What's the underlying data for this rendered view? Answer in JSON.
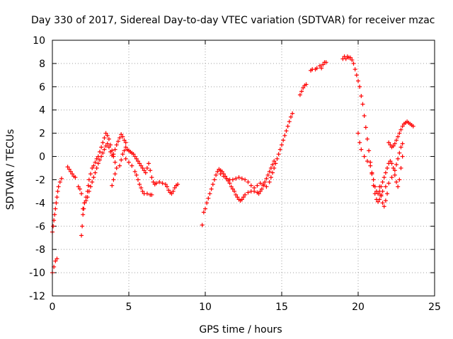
{
  "chart_data": {
    "type": "scatter",
    "title": "Day 330 of 2017, Sidereal Day-to-day VTEC variation (SDTVAR) for receiver mzac",
    "xlabel": "GPS time / hours",
    "ylabel": "SDTVAR / TECUs",
    "xlim": [
      0,
      25
    ],
    "ylim": [
      -12,
      10
    ],
    "x_ticks": [
      0,
      5,
      10,
      15,
      20,
      25
    ],
    "y_ticks": [
      -12,
      -10,
      -8,
      -6,
      -4,
      -2,
      0,
      2,
      4,
      6,
      8,
      10
    ],
    "x_tick_labels": [
      "0",
      "5",
      "10",
      "15",
      "20",
      "25"
    ],
    "y_tick_labels": [
      "-12",
      "-10",
      "-8",
      "-6",
      "-4",
      "-2",
      "0",
      "2",
      "4",
      "6",
      "8",
      "10"
    ],
    "grid": true,
    "marker": "plus",
    "color": "#ff0000",
    "series": [
      {
        "points": [
          [
            0.0,
            -10.0
          ],
          [
            0.1,
            -9.5
          ],
          [
            0.2,
            -9.0
          ],
          [
            0.3,
            -8.8
          ],
          [
            0.0,
            -6.5
          ],
          [
            0.05,
            -6.0
          ],
          [
            0.1,
            -5.5
          ],
          [
            0.15,
            -5.0
          ],
          [
            0.2,
            -4.5
          ],
          [
            0.25,
            -4.0
          ],
          [
            0.3,
            -3.5
          ],
          [
            0.35,
            -3.0
          ],
          [
            0.4,
            -2.6
          ],
          [
            0.5,
            -2.2
          ],
          [
            0.6,
            -1.9
          ],
          [
            1.0,
            -0.9
          ],
          [
            1.1,
            -1.1
          ],
          [
            1.2,
            -1.3
          ],
          [
            1.3,
            -1.5
          ],
          [
            1.4,
            -1.7
          ],
          [
            1.5,
            -1.8
          ],
          [
            1.7,
            -2.6
          ],
          [
            1.8,
            -2.8
          ],
          [
            1.9,
            -3.2
          ],
          [
            1.9,
            -6.8
          ],
          [
            1.95,
            -6.0
          ],
          [
            2.0,
            -5.0
          ],
          [
            2.05,
            -4.5
          ],
          [
            2.1,
            -4.0
          ],
          [
            2.2,
            -3.5
          ],
          [
            2.3,
            -3.0
          ],
          [
            2.35,
            -2.5
          ],
          [
            2.4,
            -2.0
          ],
          [
            2.5,
            -1.5
          ],
          [
            2.6,
            -1.0
          ],
          [
            2.7,
            -0.8
          ],
          [
            2.8,
            -0.5
          ],
          [
            2.9,
            -0.2
          ],
          [
            3.0,
            0.0
          ],
          [
            3.1,
            0.4
          ],
          [
            3.2,
            0.8
          ],
          [
            3.3,
            1.2
          ],
          [
            3.4,
            1.6
          ],
          [
            3.5,
            2.0
          ],
          [
            3.6,
            1.8
          ],
          [
            3.7,
            1.5
          ],
          [
            3.8,
            1.0
          ],
          [
            3.9,
            0.5
          ],
          [
            4.0,
            0.0
          ],
          [
            4.1,
            -0.5
          ],
          [
            4.2,
            -1.0
          ],
          [
            4.1,
            -1.5
          ],
          [
            4.0,
            -2.0
          ],
          [
            3.9,
            -2.5
          ],
          [
            2.0,
            -4.5
          ],
          [
            2.1,
            -4.0
          ],
          [
            2.2,
            -3.8
          ],
          [
            2.3,
            -3.5
          ],
          [
            2.4,
            -3.0
          ],
          [
            2.5,
            -2.6
          ],
          [
            2.6,
            -2.2
          ],
          [
            2.7,
            -1.8
          ],
          [
            2.8,
            -1.4
          ],
          [
            2.9,
            -1.0
          ],
          [
            3.0,
            -0.6
          ],
          [
            3.1,
            -0.3
          ],
          [
            3.2,
            0.0
          ],
          [
            3.3,
            0.3
          ],
          [
            3.4,
            0.6
          ],
          [
            3.5,
            0.9
          ],
          [
            3.6,
            1.1
          ],
          [
            3.7,
            0.8
          ],
          [
            3.8,
            0.4
          ],
          [
            3.9,
            0.1
          ],
          [
            4.0,
            0.2
          ],
          [
            4.1,
            0.6
          ],
          [
            4.2,
            1.0
          ],
          [
            4.3,
            1.3
          ],
          [
            4.4,
            1.6
          ],
          [
            4.5,
            1.9
          ],
          [
            4.6,
            1.7
          ],
          [
            4.7,
            1.4
          ],
          [
            4.8,
            1.2
          ],
          [
            4.4,
            -0.8
          ],
          [
            4.5,
            -0.3
          ],
          [
            4.6,
            0.2
          ],
          [
            4.7,
            0.5
          ],
          [
            4.8,
            0.8
          ],
          [
            4.9,
            0.6
          ],
          [
            5.0,
            0.5
          ],
          [
            5.1,
            0.4
          ],
          [
            5.2,
            0.3
          ],
          [
            5.3,
            0.2
          ],
          [
            5.4,
            0.0
          ],
          [
            5.5,
            -0.2
          ],
          [
            5.6,
            -0.4
          ],
          [
            5.7,
            -0.6
          ],
          [
            5.8,
            -0.8
          ],
          [
            5.9,
            -1.0
          ],
          [
            6.0,
            -1.2
          ],
          [
            6.1,
            -1.4
          ],
          [
            6.2,
            -1.0
          ],
          [
            6.3,
            -0.6
          ],
          [
            6.4,
            -1.2
          ],
          [
            6.5,
            -1.8
          ],
          [
            6.6,
            -2.2
          ],
          [
            6.7,
            -2.4
          ],
          [
            6.8,
            -2.3
          ],
          [
            7.0,
            -2.2
          ],
          [
            7.2,
            -2.3
          ],
          [
            7.4,
            -2.4
          ],
          [
            7.5,
            -2.6
          ],
          [
            7.6,
            -2.9
          ],
          [
            7.7,
            -3.1
          ],
          [
            7.8,
            -3.2
          ],
          [
            7.9,
            -3.0
          ],
          [
            8.0,
            -2.7
          ],
          [
            8.1,
            -2.5
          ],
          [
            8.2,
            -2.4
          ],
          [
            4.8,
            -0.2
          ],
          [
            5.0,
            -0.5
          ],
          [
            5.2,
            -0.8
          ],
          [
            5.4,
            -1.3
          ],
          [
            5.5,
            -1.6
          ],
          [
            5.6,
            -2.0
          ],
          [
            5.7,
            -2.4
          ],
          [
            5.8,
            -2.7
          ],
          [
            5.9,
            -3.0
          ],
          [
            6.0,
            -3.2
          ],
          [
            6.2,
            -3.2
          ],
          [
            6.4,
            -3.3
          ],
          [
            6.5,
            -3.3
          ],
          [
            9.8,
            -5.9
          ],
          [
            9.9,
            -4.8
          ],
          [
            10.0,
            -4.5
          ],
          [
            10.1,
            -4.0
          ],
          [
            10.2,
            -3.6
          ],
          [
            10.3,
            -3.2
          ],
          [
            10.4,
            -2.8
          ],
          [
            10.5,
            -2.4
          ],
          [
            10.6,
            -2.0
          ],
          [
            10.7,
            -1.6
          ],
          [
            10.8,
            -1.3
          ],
          [
            10.9,
            -1.1
          ],
          [
            11.0,
            -1.2
          ],
          [
            11.1,
            -1.3
          ],
          [
            11.2,
            -1.5
          ],
          [
            11.3,
            -1.7
          ],
          [
            11.4,
            -1.9
          ],
          [
            11.5,
            -2.1
          ],
          [
            11.6,
            -2.3
          ],
          [
            11.7,
            -2.6
          ],
          [
            11.8,
            -2.8
          ],
          [
            11.9,
            -3.0
          ],
          [
            12.0,
            -3.3
          ],
          [
            12.1,
            -3.5
          ],
          [
            12.2,
            -3.7
          ],
          [
            12.3,
            -3.8
          ],
          [
            12.4,
            -3.7
          ],
          [
            12.5,
            -3.5
          ],
          [
            12.6,
            -3.3
          ],
          [
            12.8,
            -3.1
          ],
          [
            13.0,
            -3.0
          ],
          [
            13.2,
            -3.0
          ],
          [
            13.4,
            -3.1
          ],
          [
            13.5,
            -3.2
          ],
          [
            13.6,
            -3.0
          ],
          [
            13.7,
            -2.8
          ],
          [
            13.8,
            -2.5
          ],
          [
            13.9,
            -2.2
          ],
          [
            14.0,
            -1.9
          ],
          [
            14.1,
            -1.6
          ],
          [
            14.2,
            -1.3
          ],
          [
            14.3,
            -1.0
          ],
          [
            14.4,
            -0.7
          ],
          [
            14.5,
            -0.4
          ],
          [
            11.0,
            -1.5
          ],
          [
            11.2,
            -1.7
          ],
          [
            11.4,
            -1.9
          ],
          [
            11.6,
            -2.0
          ],
          [
            11.8,
            -2.0
          ],
          [
            12.0,
            -1.9
          ],
          [
            12.2,
            -1.8
          ],
          [
            12.4,
            -1.9
          ],
          [
            12.6,
            -2.0
          ],
          [
            12.8,
            -2.2
          ],
          [
            13.0,
            -2.5
          ],
          [
            13.2,
            -2.7
          ],
          [
            13.4,
            -2.5
          ],
          [
            13.6,
            -2.3
          ],
          [
            13.8,
            -2.4
          ],
          [
            14.0,
            -2.6
          ],
          [
            14.2,
            -2.2
          ],
          [
            14.3,
            -1.8
          ],
          [
            14.4,
            -1.4
          ],
          [
            14.5,
            -1.0
          ],
          [
            14.6,
            -0.6
          ],
          [
            14.7,
            -0.2
          ],
          [
            14.8,
            0.2
          ],
          [
            14.9,
            0.6
          ],
          [
            15.0,
            1.0
          ],
          [
            15.1,
            1.4
          ],
          [
            15.2,
            1.8
          ],
          [
            15.3,
            2.2
          ],
          [
            15.4,
            2.6
          ],
          [
            15.5,
            3.0
          ],
          [
            15.6,
            3.4
          ],
          [
            15.7,
            3.7
          ],
          [
            16.2,
            5.3
          ],
          [
            16.3,
            5.6
          ],
          [
            16.4,
            5.9
          ],
          [
            16.5,
            6.1
          ],
          [
            16.6,
            6.2
          ],
          [
            16.9,
            7.4
          ],
          [
            17.0,
            7.5
          ],
          [
            17.2,
            7.5
          ],
          [
            17.3,
            7.6
          ],
          [
            17.5,
            7.8
          ],
          [
            17.6,
            7.6
          ],
          [
            17.7,
            7.9
          ],
          [
            17.8,
            8.1
          ],
          [
            17.9,
            8.1
          ],
          [
            19.0,
            8.4
          ],
          [
            19.1,
            8.6
          ],
          [
            19.2,
            8.4
          ],
          [
            19.3,
            8.6
          ],
          [
            19.4,
            8.5
          ],
          [
            19.5,
            8.5
          ],
          [
            19.6,
            8.3
          ],
          [
            19.7,
            8.0
          ],
          [
            19.8,
            7.5
          ],
          [
            19.9,
            7.0
          ],
          [
            20.0,
            6.5
          ],
          [
            20.1,
            6.0
          ],
          [
            20.2,
            5.2
          ],
          [
            20.3,
            4.5
          ],
          [
            20.4,
            3.5
          ],
          [
            20.5,
            2.5
          ],
          [
            20.6,
            1.5
          ],
          [
            20.7,
            0.5
          ],
          [
            20.8,
            -0.5
          ],
          [
            20.9,
            -1.5
          ],
          [
            21.0,
            -2.5
          ],
          [
            21.1,
            -3.2
          ],
          [
            21.2,
            -3.7
          ],
          [
            21.3,
            -3.9
          ],
          [
            21.4,
            -3.7
          ],
          [
            21.5,
            -3.3
          ],
          [
            21.6,
            -3.0
          ],
          [
            21.8,
            -2.6
          ],
          [
            22.0,
            -2.3
          ],
          [
            22.2,
            -1.8
          ],
          [
            22.4,
            -1.2
          ],
          [
            22.5,
            -0.7
          ],
          [
            22.6,
            -0.2
          ],
          [
            22.7,
            0.3
          ],
          [
            22.8,
            0.8
          ],
          [
            22.9,
            1.1
          ],
          [
            20.0,
            2.0
          ],
          [
            20.1,
            1.2
          ],
          [
            20.2,
            0.6
          ],
          [
            20.4,
            0.0
          ],
          [
            20.6,
            -0.4
          ],
          [
            20.8,
            -0.8
          ],
          [
            20.9,
            -1.4
          ],
          [
            21.0,
            -2.0
          ],
          [
            21.1,
            -2.6
          ],
          [
            21.2,
            -3.0
          ],
          [
            21.3,
            -3.2
          ],
          [
            21.4,
            -3.0
          ],
          [
            21.5,
            -2.6
          ],
          [
            21.6,
            -2.2
          ],
          [
            21.7,
            -1.8
          ],
          [
            21.8,
            -1.4
          ],
          [
            21.9,
            -1.0
          ],
          [
            22.0,
            -0.6
          ],
          [
            22.1,
            -0.4
          ],
          [
            22.2,
            -0.6
          ],
          [
            22.3,
            -1.0
          ],
          [
            22.4,
            -1.6
          ],
          [
            22.5,
            -2.2
          ],
          [
            22.6,
            -2.6
          ],
          [
            22.7,
            -2.0
          ],
          [
            22.8,
            -1.0
          ],
          [
            22.9,
            0.0
          ],
          [
            21.4,
            -2.6
          ],
          [
            21.5,
            -3.4
          ],
          [
            21.6,
            -4.0
          ],
          [
            21.7,
            -4.3
          ],
          [
            21.8,
            -3.8
          ],
          [
            21.9,
            -3.2
          ],
          [
            22.0,
            1.2
          ],
          [
            22.1,
            1.0
          ],
          [
            22.2,
            0.8
          ],
          [
            22.3,
            0.9
          ],
          [
            22.4,
            1.1
          ],
          [
            22.5,
            1.4
          ],
          [
            22.6,
            1.7
          ],
          [
            22.7,
            2.0
          ],
          [
            22.8,
            2.3
          ],
          [
            22.9,
            2.6
          ],
          [
            23.0,
            2.8
          ],
          [
            23.1,
            2.9
          ],
          [
            23.2,
            3.0
          ],
          [
            23.3,
            2.9
          ],
          [
            23.4,
            2.8
          ],
          [
            23.5,
            2.7
          ],
          [
            23.6,
            2.6
          ]
        ]
      }
    ]
  }
}
